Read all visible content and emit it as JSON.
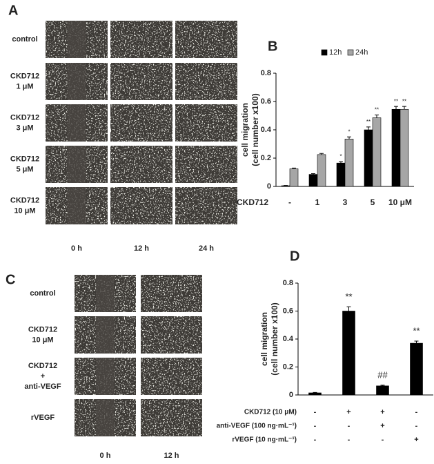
{
  "panel_a": {
    "label": "A",
    "rows": [
      [
        "control"
      ],
      [
        "CKD712",
        "1 μM"
      ],
      [
        "CKD712",
        "3 μM"
      ],
      [
        "CKD712",
        "5 μM"
      ],
      [
        "CKD712",
        "10 μM"
      ]
    ],
    "columns": [
      "0 h",
      "12 h",
      "24 h"
    ]
  },
  "panel_c": {
    "label": "C",
    "rows": [
      [
        "control"
      ],
      [
        "CKD712",
        "10 μM"
      ],
      [
        "CKD712",
        "+",
        "anti-VEGF"
      ],
      [
        "rVEGF"
      ]
    ],
    "columns": [
      "0 h",
      "12 h"
    ]
  },
  "chart_data": [
    {
      "type": "bar",
      "label": "B",
      "ylabel": [
        "cell migration",
        "(cell number x100)"
      ],
      "xlabel": "CKD712",
      "categories": [
        "-",
        "1",
        "3",
        "5",
        "10 μM"
      ],
      "series": [
        {
          "name": "12h",
          "color": "#000000",
          "values": [
            0.005,
            0.085,
            0.165,
            0.4,
            0.545
          ],
          "errors": [
            0.002,
            0.005,
            0.01,
            0.02,
            0.02
          ],
          "significance": [
            null,
            null,
            "*",
            "**",
            "**"
          ]
        },
        {
          "name": "24h",
          "color": "#a6a6a6",
          "values": [
            0.125,
            0.225,
            0.335,
            0.485,
            0.545
          ],
          "errors": [
            0.005,
            0.008,
            0.015,
            0.02,
            0.02
          ],
          "significance": [
            null,
            null,
            "*",
            "**",
            "**"
          ]
        }
      ],
      "ylim": [
        0,
        0.8
      ],
      "yticks": [
        0,
        0.2,
        0.4,
        0.6,
        0.8
      ]
    },
    {
      "type": "bar",
      "label": "D",
      "ylabel": [
        "cell migration",
        "(cell number x100)"
      ],
      "categories": [
        null,
        null,
        null,
        null
      ],
      "series": [
        {
          "color": "#000000",
          "values": [
            0.015,
            0.6,
            0.065,
            0.37
          ],
          "errors": [
            0.003,
            0.03,
            0.005,
            0.015
          ],
          "significance": [
            null,
            "**",
            "##",
            "**"
          ]
        }
      ],
      "conditions": [
        {
          "label": "CKD712 (10 μM)",
          "marks": [
            "-",
            "+",
            "+",
            "-"
          ]
        },
        {
          "label": "anti-VEGF (100 ng·mL⁻¹)",
          "marks": [
            "-",
            "-",
            "+",
            "-"
          ]
        },
        {
          "label": "rVEGF (10 ng·mL⁻¹)",
          "marks": [
            "-",
            "-",
            "-",
            "+"
          ]
        }
      ],
      "ylim": [
        0,
        0.8
      ],
      "yticks": [
        0,
        0.2,
        0.4,
        0.6,
        0.8
      ]
    }
  ]
}
